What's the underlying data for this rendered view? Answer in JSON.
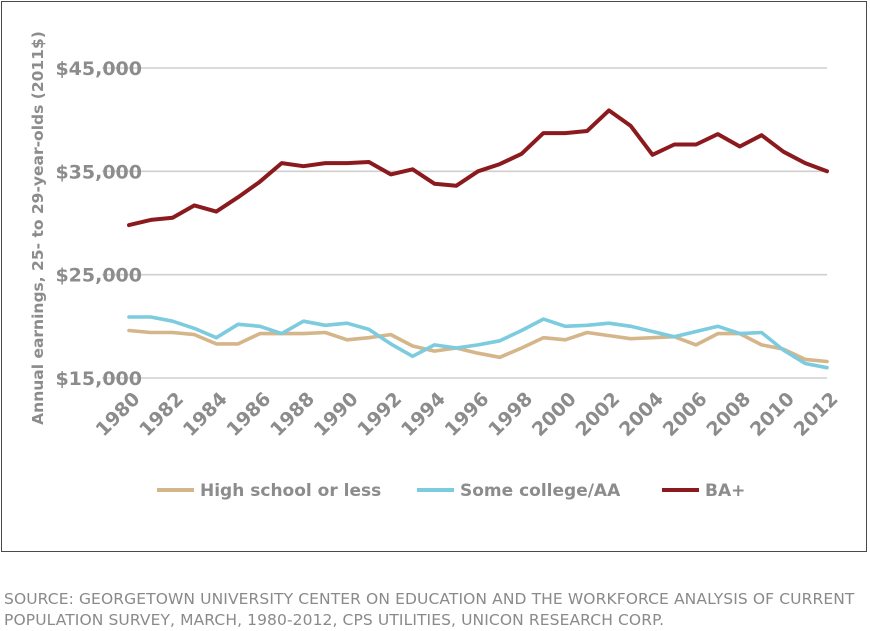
{
  "chart_data": {
    "type": "line",
    "title": "",
    "xlabel": "",
    "ylabel": "Annual earnings, 25- to 29-year-olds (2011$)",
    "x": [
      1980,
      1981,
      1982,
      1983,
      1984,
      1985,
      1986,
      1987,
      1988,
      1989,
      1990,
      1991,
      1992,
      1993,
      1994,
      1995,
      1996,
      1997,
      1998,
      1999,
      2000,
      2001,
      2002,
      2003,
      2004,
      2005,
      2006,
      2007,
      2008,
      2009,
      2010,
      2011,
      2012
    ],
    "x_tick_labels": [
      "1980",
      "1982",
      "1984",
      "1986",
      "1988",
      "1990",
      "1992",
      "1994",
      "1996",
      "1998",
      "2000",
      "2002",
      "2004",
      "2006",
      "2008",
      "2010",
      "2012"
    ],
    "y_ticks": [
      15000,
      25000,
      35000,
      45000
    ],
    "y_tick_labels": [
      "$15,000",
      "$25,000",
      "$35,000",
      "$45,000"
    ],
    "ylim": [
      15000,
      45000
    ],
    "grid": true,
    "legend_position": "bottom",
    "series": [
      {
        "name": "High school or less",
        "color": "#d4b68a",
        "values": [
          19600,
          19400,
          19400,
          19200,
          18300,
          18300,
          19300,
          19300,
          19300,
          19400,
          18700,
          18900,
          19200,
          18100,
          17600,
          17900,
          17400,
          17000,
          17900,
          18900,
          18700,
          19400,
          19100,
          18800,
          18900,
          19000,
          18200,
          19300,
          19300,
          18200,
          17800,
          16800,
          16600
        ]
      },
      {
        "name": "Some college/AA",
        "color": "#7ccbdf",
        "values": [
          20900,
          20900,
          20500,
          19800,
          18900,
          20200,
          20000,
          19300,
          20500,
          20100,
          20300,
          19700,
          18300,
          17100,
          18200,
          17900,
          18200,
          18600,
          19600,
          20700,
          20000,
          20100,
          20300,
          20000,
          19500,
          19000,
          19500,
          20000,
          19300,
          19400,
          17700,
          16400,
          16000
        ]
      },
      {
        "name": "BA+",
        "color": "#8b1a1f",
        "values": [
          29800,
          30300,
          30500,
          31700,
          31100,
          32500,
          34000,
          35800,
          35500,
          35800,
          35800,
          35900,
          34700,
          35200,
          33800,
          33600,
          35000,
          35700,
          36700,
          38700,
          38700,
          38900,
          40900,
          39400,
          36600,
          37600,
          37600,
          38600,
          37400,
          38500,
          36900,
          35800,
          35000
        ]
      }
    ]
  },
  "source_note": {
    "line1": "SOURCE: GEORGETOWN UNIVERSITY CENTER ON EDUCATION AND THE WORKFORCE ANALYSIS OF CURRENT",
    "line2": "POPULATION SURVEY, MARCH, 1980-2012, CPS UTILITIES, UNICON RESEARCH CORP."
  }
}
